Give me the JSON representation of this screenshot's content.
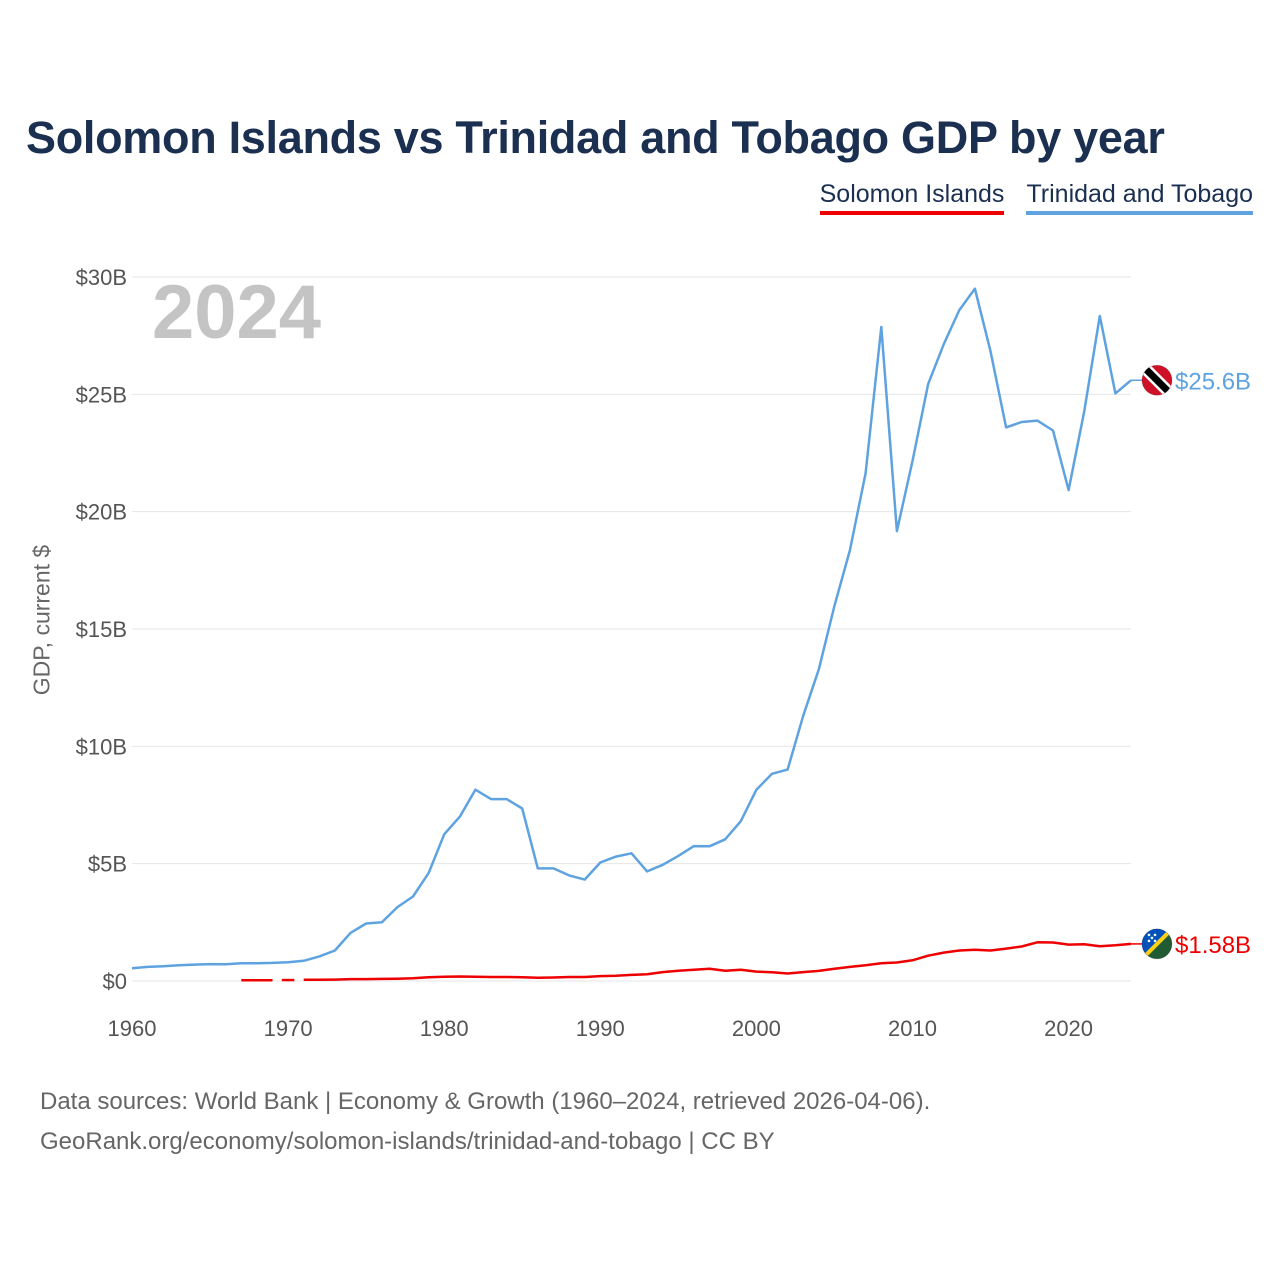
{
  "title": "Solomon Islands vs Trinidad and Tobago GDP by year",
  "legend": [
    {
      "name": "Solomon Islands",
      "color": "#ee0000"
    },
    {
      "name": "Trinidad and Tobago",
      "color": "#5ea3e0"
    }
  ],
  "source": {
    "line1": "Data sources: World Bank | Economy & Growth (1960–2024, retrieved 2026-04-06).",
    "line2": "GeoRank.org/economy/solomon-islands/trinidad-and-tobago | CC BY"
  },
  "chart_data": {
    "type": "line",
    "title": "Solomon Islands vs Trinidad and Tobago GDP by year",
    "xlabel": "",
    "ylabel": "GDP, current $",
    "year_label": "2024",
    "xlim": [
      1960,
      2024
    ],
    "ylim": [
      0,
      30
    ],
    "x_ticks": [
      1960,
      1970,
      1980,
      1990,
      2000,
      2010,
      2020
    ],
    "y_ticks": [
      {
        "value": 0,
        "label": "$0"
      },
      {
        "value": 5,
        "label": "$5B"
      },
      {
        "value": 10,
        "label": "$10B"
      },
      {
        "value": 15,
        "label": "$15B"
      },
      {
        "value": 20,
        "label": "$20B"
      },
      {
        "value": 25,
        "label": "$25B"
      },
      {
        "value": 30,
        "label": "$30B"
      }
    ],
    "units": "billions of current US$",
    "series": [
      {
        "name": "Trinidad and Tobago",
        "color": "#5ea3e0",
        "end_label": "$25.6B",
        "flag": "trinidad-and-tobago-flag",
        "x": [
          1960,
          1961,
          1962,
          1963,
          1964,
          1965,
          1966,
          1967,
          1968,
          1969,
          1970,
          1971,
          1972,
          1973,
          1974,
          1975,
          1976,
          1977,
          1978,
          1979,
          1980,
          1981,
          1982,
          1983,
          1984,
          1985,
          1986,
          1987,
          1988,
          1989,
          1990,
          1991,
          1992,
          1993,
          1994,
          1995,
          1996,
          1997,
          1998,
          1999,
          2000,
          2001,
          2002,
          2003,
          2004,
          2005,
          2006,
          2007,
          2008,
          2009,
          2010,
          2011,
          2012,
          2013,
          2014,
          2015,
          2016,
          2017,
          2018,
          2019,
          2020,
          2021,
          2022,
          2023,
          2024
        ],
        "values": [
          0.54,
          0.6,
          0.63,
          0.67,
          0.7,
          0.72,
          0.71,
          0.76,
          0.76,
          0.77,
          0.8,
          0.86,
          1.05,
          1.3,
          2.05,
          2.45,
          2.5,
          3.15,
          3.6,
          4.6,
          6.25,
          7.0,
          8.15,
          7.75,
          7.75,
          7.35,
          4.8,
          4.8,
          4.5,
          4.32,
          5.05,
          5.3,
          5.44,
          4.67,
          4.95,
          5.33,
          5.75,
          5.74,
          6.04,
          6.81,
          8.15,
          8.83,
          9.01,
          11.3,
          13.28,
          15.98,
          18.37,
          21.64,
          27.87,
          19.17,
          22.16,
          25.43,
          27.13,
          28.59,
          29.5,
          26.84,
          23.59,
          23.82,
          23.88,
          23.46,
          20.92,
          24.27,
          28.34,
          25.04,
          25.6
        ]
      },
      {
        "name": "Solomon Islands",
        "color": "#ee0000",
        "end_label": "$1.58B",
        "flag": "solomon-islands-flag",
        "x": [
          1967,
          1968,
          1969,
          1970,
          1971,
          1972,
          1973,
          1974,
          1975,
          1976,
          1977,
          1978,
          1979,
          1980,
          1981,
          1982,
          1983,
          1984,
          1985,
          1986,
          1987,
          1988,
          1989,
          1990,
          1991,
          1992,
          1993,
          1994,
          1995,
          1996,
          1997,
          1998,
          1999,
          2000,
          2001,
          2002,
          2003,
          2004,
          2005,
          2006,
          2007,
          2008,
          2009,
          2010,
          2011,
          2012,
          2013,
          2014,
          2015,
          2016,
          2017,
          2018,
          2019,
          2020,
          2021,
          2022,
          2023,
          2024
        ],
        "values": [
          0.03,
          0.03,
          0.03,
          null,
          0.05,
          0.05,
          0.06,
          0.08,
          0.08,
          0.09,
          0.1,
          0.12,
          0.16,
          0.18,
          0.19,
          0.18,
          0.17,
          0.17,
          0.16,
          0.14,
          0.15,
          0.17,
          0.17,
          0.21,
          0.22,
          0.26,
          0.29,
          0.38,
          0.44,
          0.48,
          0.52,
          0.44,
          0.48,
          0.4,
          0.37,
          0.32,
          0.38,
          0.43,
          0.52,
          0.6,
          0.67,
          0.76,
          0.79,
          0.88,
          1.08,
          1.21,
          1.3,
          1.33,
          1.3,
          1.38,
          1.47,
          1.65,
          1.64,
          1.55,
          1.57,
          1.48,
          1.52,
          1.58
        ]
      }
    ]
  }
}
